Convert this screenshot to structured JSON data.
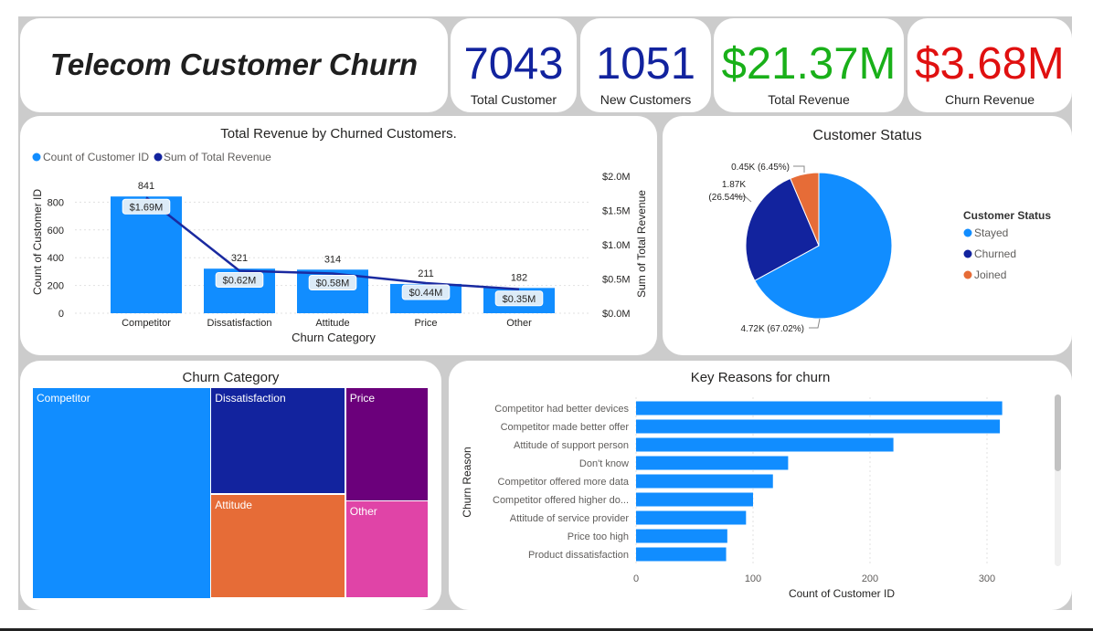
{
  "title": "Telecom Customer Churn",
  "kpis": [
    {
      "value": "7043",
      "label": "Total Customer",
      "color": "#12239E"
    },
    {
      "value": "1051",
      "label": "New Customers",
      "color": "#12239E"
    },
    {
      "value": "$21.37M",
      "label": "Total Revenue",
      "color": "#19B019"
    },
    {
      "value": "$3.68M",
      "label": "Churn Revenue",
      "color": "#E01010"
    }
  ],
  "combo": {
    "title": "Total Revenue by Churned Customers.",
    "legend": [
      "Count of Customer ID",
      "Sum of Total Revenue"
    ],
    "xlabel": "Churn Category",
    "ylabel_left": "Count of Customer ID",
    "ylabel_right": "Sum of Total Revenue",
    "left_ticks": [
      "0",
      "200",
      "400",
      "600",
      "800"
    ],
    "right_ticks": [
      "$0.0M",
      "$0.5M",
      "$1.0M",
      "$1.5M",
      "$2.0M"
    ]
  },
  "pie": {
    "title": "Customer Status",
    "legend_title": "Customer Status",
    "labels_text": [
      "4.72K (67.02%)",
      "1.87K",
      "(26.54%)",
      "0.45K (6.45%)"
    ]
  },
  "treemap": {
    "title": "Churn Category",
    "labels": [
      "Competitor",
      "Dissatisfaction",
      "Attitude",
      "Price",
      "Other"
    ]
  },
  "hbar": {
    "title": "Key Reasons for churn",
    "xlabel": "Count of Customer ID",
    "ylabel": "Churn Reason",
    "ticks": [
      "0",
      "100",
      "200",
      "300"
    ]
  },
  "colors": {
    "blue": "#118DFF",
    "navy": "#12239E",
    "orange": "#E66C37",
    "purple": "#6B007B",
    "pink": "#E044A7",
    "stroke": "#1A2AA0"
  },
  "chart_data": [
    {
      "type": "bar",
      "title": "Total Revenue by Churned Customers.",
      "categories": [
        "Competitor",
        "Dissatisfaction",
        "Attitude",
        "Price",
        "Other"
      ],
      "series": [
        {
          "name": "Count of Customer ID",
          "kind": "bar",
          "axis": "left",
          "values": [
            841,
            321,
            314,
            211,
            182
          ],
          "labels": [
            "841",
            "321",
            "314",
            "211",
            "182"
          ]
        },
        {
          "name": "Sum of Total Revenue",
          "kind": "line",
          "axis": "right",
          "unit": "$M",
          "values": [
            1.69,
            0.62,
            0.58,
            0.44,
            0.35
          ],
          "labels": [
            "$1.69M",
            "$0.62M",
            "$0.58M",
            "$0.44M",
            "$0.35M"
          ]
        }
      ],
      "xlabel": "Churn Category",
      "ylabel": "Count of Customer ID",
      "y2label": "Sum of Total Revenue",
      "ylim": [
        0,
        1000
      ],
      "y2lim": [
        0,
        2.0
      ],
      "legend": "top-left"
    },
    {
      "type": "pie",
      "title": "Customer Status",
      "categories": [
        "Stayed",
        "Churned",
        "Joined"
      ],
      "values": [
        4720,
        1870,
        450
      ],
      "percents": [
        67.02,
        26.54,
        6.45
      ],
      "legend": "right"
    },
    {
      "type": "heatmap",
      "subtype": "treemap",
      "title": "Churn Category",
      "categories": [
        "Competitor",
        "Dissatisfaction",
        "Attitude",
        "Price",
        "Other"
      ],
      "values": [
        841,
        321,
        314,
        211,
        182
      ]
    },
    {
      "type": "bar",
      "orientation": "horizontal",
      "title": "Key Reasons for churn",
      "categories": [
        "Competitor had better devices",
        "Competitor made better offer",
        "Attitude of support person",
        "Don't know",
        "Competitor offered more data",
        "Competitor offered higher do...",
        "Attitude of service provider",
        "Price too high",
        "Product dissatisfaction"
      ],
      "values": [
        313,
        311,
        220,
        130,
        117,
        100,
        94,
        78,
        77
      ],
      "xlabel": "Count of Customer ID",
      "ylabel": "Churn Reason",
      "xlim": [
        0,
        330
      ]
    }
  ]
}
